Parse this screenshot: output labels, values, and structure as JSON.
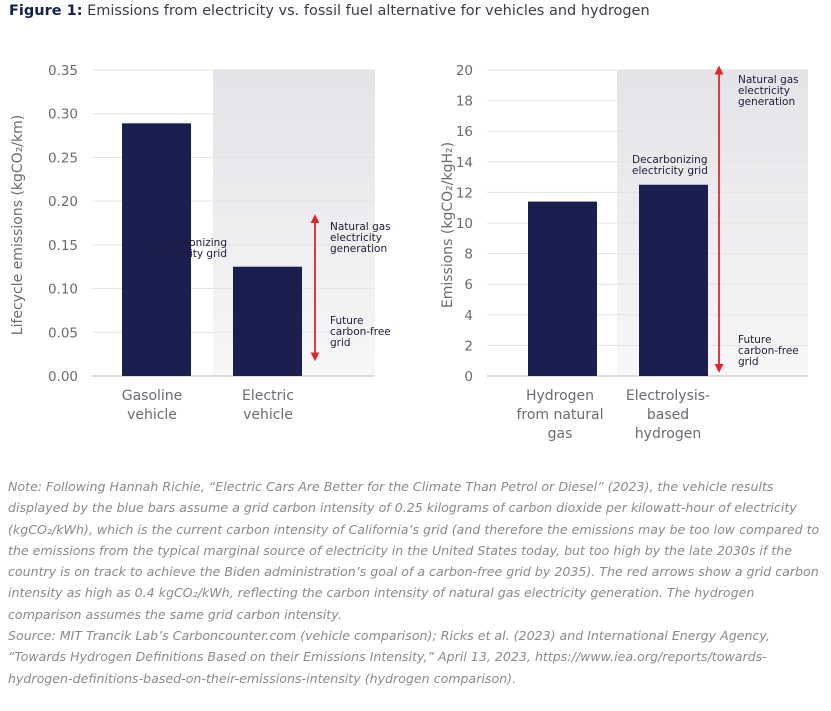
{
  "figure": {
    "label": "Figure 1:",
    "title": "Emissions from electricity vs. fossil fuel alternative for vehicles and hydrogen"
  },
  "colors": {
    "bar": "#1b1f4f",
    "arrow": "#e0262c",
    "shaded_region": "#e6e6ea",
    "grid": "#e3e3e3"
  },
  "chart_data": [
    {
      "type": "bar",
      "categories": [
        [
          "Gasoline",
          "vehicle"
        ],
        [
          "Electric",
          "vehicle"
        ]
      ],
      "values": [
        0.289,
        0.125
      ],
      "ylabel": "Lifecycle emissions (kgCO₂/km)",
      "ylim": [
        0,
        0.35
      ],
      "yticks": [
        "0.00",
        "0.05",
        "0.10",
        "0.15",
        "0.20",
        "0.25",
        "0.30",
        "0.35"
      ],
      "grid": true,
      "shaded_category": 1,
      "range_arrow": {
        "category": 1,
        "from": 0.022,
        "to": 0.18
      },
      "annotations": [
        {
          "text": [
            "Decarbonizing",
            "electricity grid"
          ]
        },
        {
          "text": [
            "Natural gas",
            "electricity",
            "generation"
          ]
        },
        {
          "text": [
            "Future",
            "carbon-free",
            "grid"
          ]
        }
      ]
    },
    {
      "type": "bar",
      "categories": [
        [
          "Hydrogen",
          "from natural",
          "gas"
        ],
        [
          "Electrolysis-",
          "based",
          "hydrogen"
        ]
      ],
      "values": [
        11.4,
        12.5
      ],
      "ylabel": "Emissions (kgCO₂/kgH₂)",
      "ylim": [
        0,
        20
      ],
      "yticks": [
        "0",
        "2",
        "4",
        "6",
        "8",
        "10",
        "12",
        "14",
        "16",
        "18",
        "20"
      ],
      "grid": true,
      "shaded_category": 1,
      "range_arrow": {
        "category": 1,
        "from": 0.5,
        "to": 20
      },
      "annotations": [
        {
          "text": [
            "Decarbonizing",
            "electricity grid"
          ]
        },
        {
          "text": [
            "Natural gas",
            "electricity",
            "generation"
          ]
        },
        {
          "text": [
            "Future",
            "carbon-free",
            "grid"
          ]
        }
      ]
    }
  ],
  "notes": {
    "note": "Note: Following Hannah Richie, “Electric Cars Are Better for the Climate Than Petrol or Diesel” (2023), the vehicle results displayed by the blue bars assume a grid carbon intensity of 0.25 kilograms of carbon dioxide per kilowatt-hour of electricity (kgCO₂/kWh), which is the current carbon intensity of California’s grid (and therefore the emissions may be too low compared to the emissions from the typical marginal source of electricity in the United States today, but too high by the late 2030s if the country is on track to achieve the Biden administration’s goal of a carbon-free grid by 2035). The red arrows show a grid carbon intensity as high as 0.4 kgCO₂/kWh, reflecting the carbon intensity of natural gas electricity generation. The hydrogen comparison assumes the same grid carbon intensity.",
    "source": "Source: MIT Trancik Lab’s Carboncounter.com (vehicle comparison); Ricks et al. (2023) and International Energy Agency, “Towards Hydrogen Definitions Based on their Emissions Intensity,” April 13, 2023, https://www.iea.org/reports/towards-hydrogen-definitions-based-on-their-emissions-intensity (hydrogen comparison)."
  }
}
